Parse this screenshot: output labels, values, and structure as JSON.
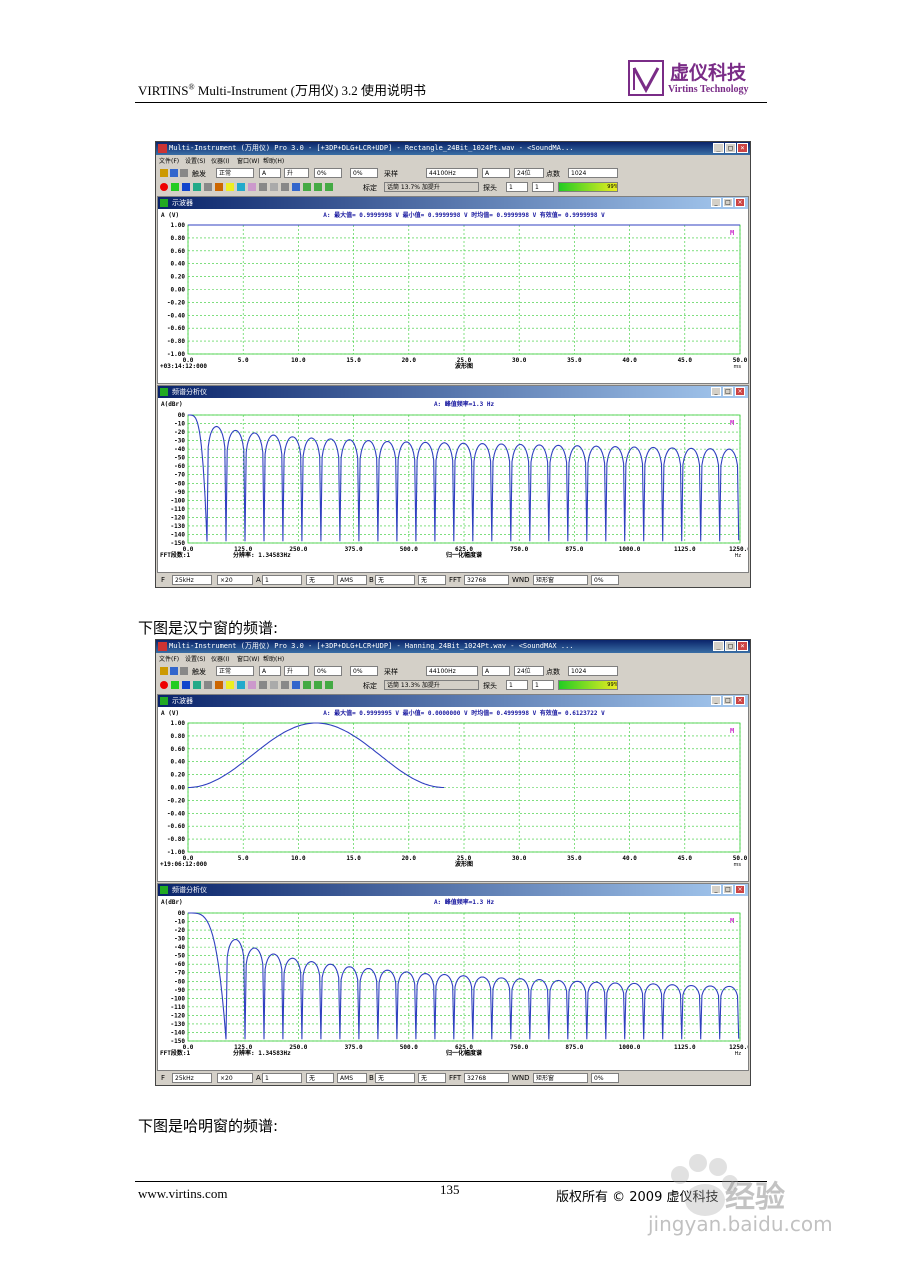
{
  "header": {
    "title_main": "VIRTINS",
    "title_sup": "®",
    "title_rest": " Multi-Instrument (万用仪) 3.2 使用说明书",
    "logo_cn": "虚仪科技",
    "logo_en": "Virtins Technology"
  },
  "captions": {
    "hanning": "下图是汉宁窗的频谱:",
    "hamming": "下图是哈明窗的频谱:"
  },
  "footer": {
    "url": "www.virtins.com",
    "page": "135",
    "copyright": "版权所有 © 2009 虚仪科技"
  },
  "watermark": {
    "text": "经验",
    "url": "jingyan.baidu.com"
  },
  "common": {
    "menu": [
      "文件(F)",
      "设置(S)",
      "仪器(I)",
      "窗口(W)",
      "帮助(H)"
    ],
    "toolbar1": {
      "trigger": "触发",
      "mode": "正常",
      "ch": "A",
      "edge": "升",
      "pct1": "0%",
      "pct2": "0%",
      "sample": "采样",
      "rate": "44100Hz",
      "chsel": "A",
      "bits": "24位",
      "points_label": "点数",
      "points": "1024"
    },
    "toolbar2": {
      "calib": "标定",
      "probe_label": "探头",
      "probe": "1",
      "probe2": "1",
      "level": "99%"
    },
    "scope_title": "示波器",
    "spec_title": "频谱分析仪",
    "bottom": {
      "f": "F",
      "span": "25kHz",
      "zoom": "×20",
      "ch": "A",
      "chv": "1",
      "none": "无",
      "ams": "AMS",
      "b": "B",
      "bv": "无",
      "fft": "FFT",
      "fftv": "32768",
      "wnd": "WND",
      "wndv": "矩形窗",
      "pct": "0%"
    },
    "scope_yaxis": "A (V)",
    "spec_yaxis": "A(dBr)",
    "scope_xlabel": "波形图",
    "spec_xlabel": "归一化幅度谱",
    "scope_xunit": "ms",
    "spec_xunit": "Hz",
    "ml": "M",
    "fft_info": "FFT段数:1",
    "res_info": "分辨率: 1.34583Hz",
    "spec_peak": "A: 峰值频率=1.3 Hz"
  },
  "windows": [
    {
      "title": "Multi-Instrument (万用仪) Pro 3.0    -    [+3DP+DLG+LCR+UDP]    -    Rectangle_24Bit_1024Pt.wav    -    <SoundMA...",
      "status": "话筒 13.7% 加提升",
      "scope_stats": "A: 最大值= 0.9999998 V  最小值= 0.9999998 V  时均值= 0.9999998 V  有效值= 0.9999998 V",
      "time": "+03:14:12:000"
    },
    {
      "title": "Multi-Instrument (万用仪) Pro 3.0    -    [+3DP+DLG+LCR+UDP]    -    Hanning_24Bit_1024Pt.wav    -    <SoundMAX ...",
      "status": "话筒 13.3% 加提升",
      "scope_stats": "A: 最大值= 0.9999995 V  最小值= 0.0000000 V  时均值= 0.4999998 V  有效值= 0.6123722 V",
      "time": "+19:06:12:000"
    }
  ],
  "chart_data": [
    {
      "type": "line",
      "name": "scope-rectangle",
      "ylim": [
        -1.0,
        1.0
      ],
      "xlim": [
        0,
        50
      ],
      "yticks": [
        "1.00",
        "0.80",
        "0.60",
        "0.40",
        "0.20",
        "0.00",
        "-0.20",
        "-0.40",
        "-0.60",
        "-0.80",
        "-1.00"
      ],
      "xticks": [
        "0.0",
        "5.0",
        "10.0",
        "15.0",
        "20.0",
        "25.0",
        "30.0",
        "35.0",
        "40.0",
        "45.0",
        "50.0"
      ],
      "series": [
        {
          "x": [
            0,
            50
          ],
          "y": [
            1.0,
            1.0
          ]
        }
      ],
      "color": "#3040c0"
    },
    {
      "type": "line",
      "name": "spectrum-rectangle",
      "ylim": [
        -150,
        0
      ],
      "xlim": [
        0,
        1250
      ],
      "yticks": [
        "00",
        "-10",
        "-20",
        "-30",
        "-40",
        "-50",
        "-60",
        "-70",
        "-80",
        "-90",
        "-100",
        "-110",
        "-120",
        "-130",
        "-140",
        "-150"
      ],
      "xticks": [
        "0.0",
        "125.0",
        "250.0",
        "375.0",
        "500.0",
        "625.0",
        "750.0",
        "875.0",
        "1000.0",
        "1125.0",
        "1250.0"
      ],
      "lobe_width_hz": 43,
      "lobe_peaks_db": [
        0,
        -13.5,
        -18,
        -21,
        -23.5,
        -25.5,
        -27,
        -28,
        -29,
        -30,
        -31,
        -31.5,
        -32,
        -32.5,
        -33,
        -33.5,
        -34,
        -34.5,
        -35,
        -35.5,
        -36,
        -36.5,
        -37,
        -37.5,
        -38,
        -38.5,
        -39,
        -39.5,
        -40
      ],
      "null_db": -148,
      "color": "#3040c0"
    },
    {
      "type": "line",
      "name": "scope-hanning",
      "ylim": [
        -1.0,
        1.0
      ],
      "xlim": [
        0,
        50
      ],
      "yticks": [
        "1.00",
        "0.80",
        "0.60",
        "0.40",
        "0.20",
        "0.00",
        "-0.20",
        "-0.40",
        "-0.60",
        "-0.80",
        "-1.00"
      ],
      "xticks": [
        "0.0",
        "5.0",
        "10.0",
        "15.0",
        "20.0",
        "25.0",
        "30.0",
        "35.0",
        "40.0",
        "45.0",
        "50.0"
      ],
      "series": [
        {
          "x": [
            0,
            23.2
          ],
          "shape": "hann",
          "ymin": 0,
          "ymax": 1
        }
      ],
      "color": "#3040c0"
    },
    {
      "type": "line",
      "name": "spectrum-hanning",
      "ylim": [
        -150,
        0
      ],
      "xlim": [
        0,
        1250
      ],
      "yticks": [
        "00",
        "-10",
        "-20",
        "-30",
        "-40",
        "-50",
        "-60",
        "-70",
        "-80",
        "-90",
        "-100",
        "-110",
        "-120",
        "-130",
        "-140",
        "-150"
      ],
      "xticks": [
        "0.0",
        "125.0",
        "250.0",
        "375.0",
        "500.0",
        "625.0",
        "750.0",
        "875.0",
        "1000.0",
        "1125.0",
        "1250.0"
      ],
      "lobe_width_hz": 43,
      "main_lobe_hz": 86,
      "lobe_peaks_db": [
        0,
        -31,
        -41,
        -48,
        -53,
        -57,
        -60,
        -63,
        -65,
        -67,
        -69,
        -71,
        -72,
        -73.5,
        -75,
        -76,
        -77,
        -78,
        -79,
        -80,
        -81,
        -82,
        -82.5,
        -83,
        -84,
        -85,
        -85.5,
        -86
      ],
      "null_db": -148,
      "color": "#3040c0"
    }
  ]
}
